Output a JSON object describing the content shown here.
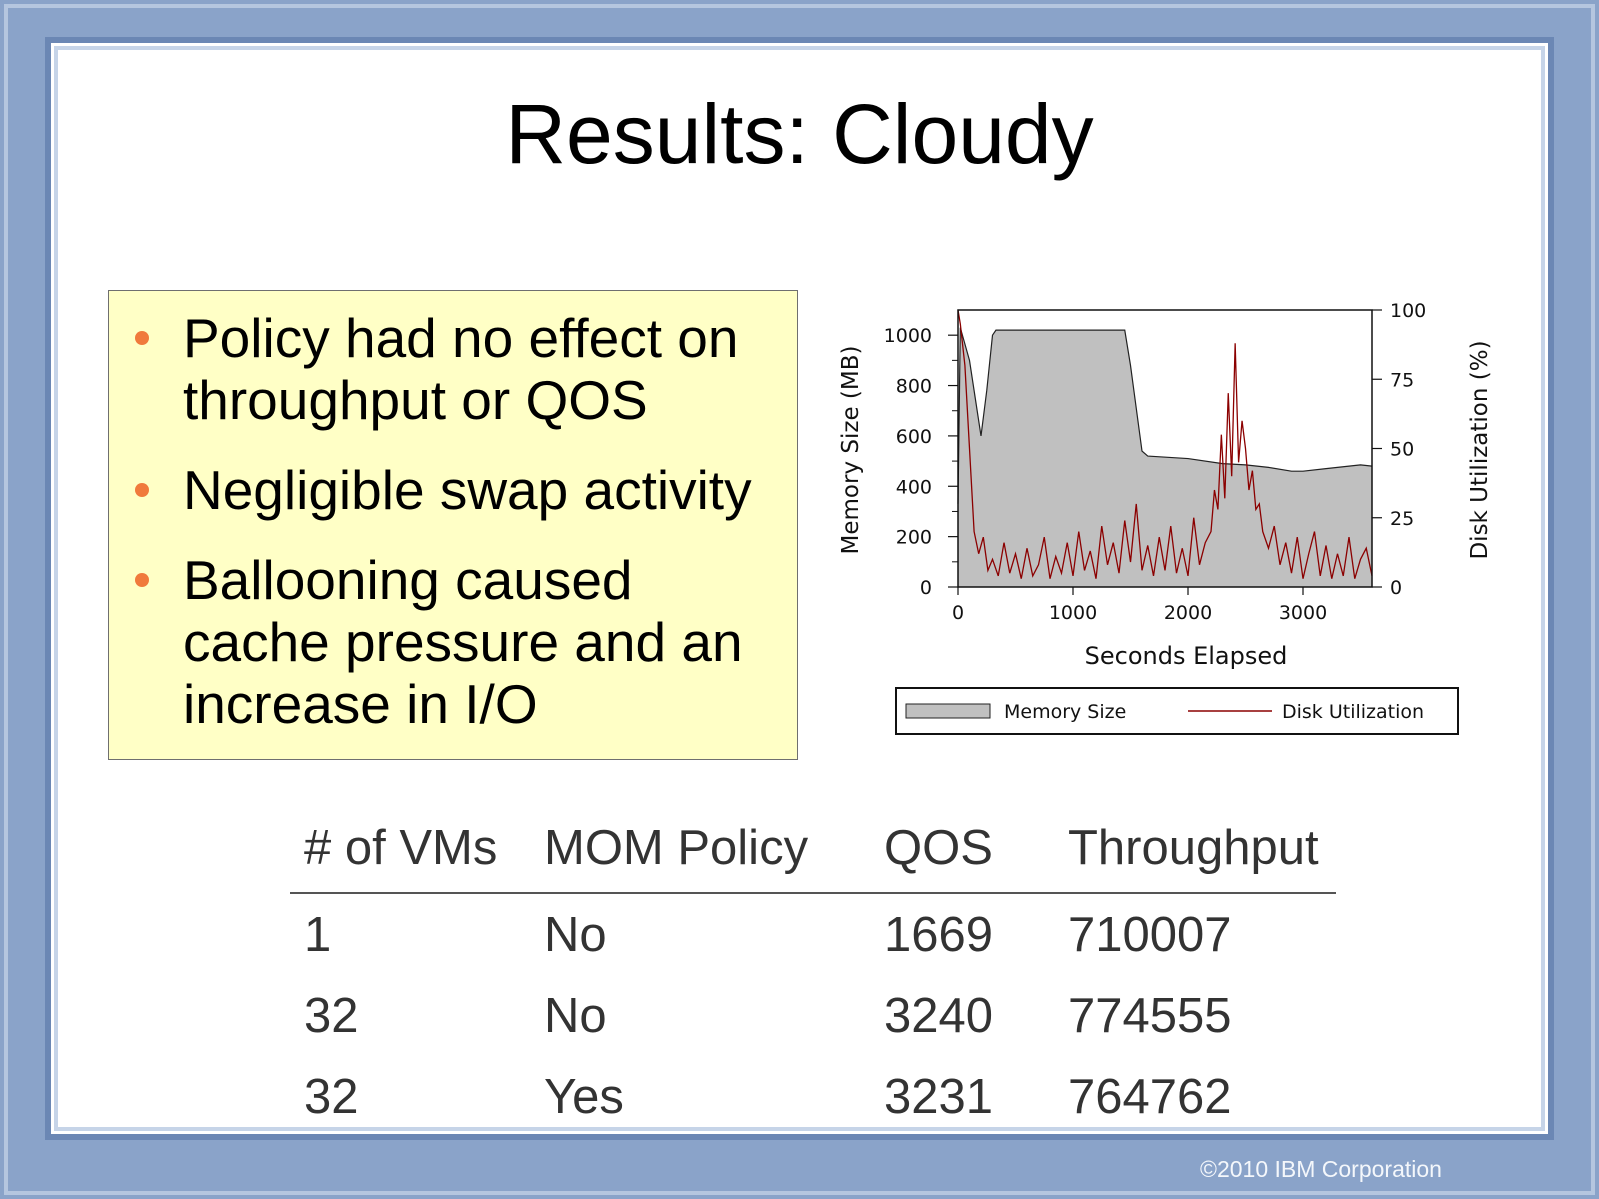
{
  "slide": {
    "title": "Results: Cloudy",
    "bullets": [
      "Policy had no effect on throughput or QOS",
      "Negligible swap activity",
      "Ballooning caused cache pressure and an increase in I/O"
    ],
    "copyright": "©2010 IBM Corporation",
    "colors": {
      "bullet_box": "#ffffc6",
      "bullet_dot": "#f07a3c",
      "frame": "#8aa3c9"
    }
  },
  "chart_data": {
    "type": "area",
    "xlabel": "Seconds Elapsed",
    "ylabel": "Memory Size (MB)",
    "y2label": "Disk Utilization (%)",
    "xlim": [
      0,
      3600
    ],
    "ylim": [
      0,
      1100
    ],
    "y2lim": [
      0,
      100
    ],
    "x_ticks": [
      "0",
      "1000",
      "2000",
      "3000"
    ],
    "y_ticks": [
      "0",
      "200",
      "400",
      "600",
      "800",
      "1000"
    ],
    "y2_ticks": [
      "0",
      "25",
      "50",
      "75",
      "100"
    ],
    "legend": {
      "placement": "bottom",
      "entries": [
        "Memory Size",
        "Disk Utilization"
      ]
    },
    "colors": {
      "memory": "#c0c0c0",
      "memory_line": "#222222",
      "disk": "#8b0000"
    },
    "series": [
      {
        "name": "Memory Size",
        "axis": "left",
        "x": [
          0,
          20,
          100,
          150,
          200,
          250,
          300,
          330,
          1450,
          1500,
          1600,
          1650,
          2000,
          2300,
          2500,
          2700,
          2900,
          3000,
          3200,
          3400,
          3500,
          3600
        ],
        "y": [
          330,
          1030,
          900,
          750,
          600,
          780,
          1000,
          1020,
          1020,
          880,
          540,
          520,
          510,
          490,
          485,
          475,
          460,
          460,
          470,
          480,
          485,
          480
        ]
      },
      {
        "name": "Disk Utilization",
        "axis": "right",
        "x": [
          0,
          20,
          60,
          100,
          140,
          180,
          220,
          260,
          300,
          350,
          400,
          450,
          500,
          550,
          600,
          650,
          700,
          750,
          800,
          850,
          900,
          950,
          1000,
          1050,
          1100,
          1150,
          1200,
          1250,
          1300,
          1350,
          1400,
          1450,
          1500,
          1550,
          1600,
          1650,
          1700,
          1750,
          1800,
          1850,
          1900,
          1950,
          2000,
          2050,
          2100,
          2150,
          2200,
          2230,
          2260,
          2290,
          2320,
          2350,
          2380,
          2410,
          2440,
          2470,
          2500,
          2530,
          2560,
          2590,
          2620,
          2650,
          2700,
          2750,
          2800,
          2850,
          2900,
          2950,
          3000,
          3050,
          3100,
          3150,
          3200,
          3250,
          3300,
          3350,
          3400,
          3450,
          3500,
          3550,
          3600
        ],
        "y": [
          100,
          95,
          80,
          50,
          20,
          12,
          18,
          6,
          10,
          4,
          16,
          5,
          12,
          3,
          14,
          4,
          8,
          18,
          3,
          11,
          5,
          16,
          4,
          20,
          6,
          13,
          3,
          22,
          8,
          16,
          5,
          24,
          9,
          30,
          6,
          15,
          4,
          18,
          6,
          22,
          5,
          14,
          4,
          25,
          8,
          16,
          20,
          35,
          28,
          55,
          32,
          70,
          40,
          88,
          45,
          60,
          50,
          35,
          42,
          28,
          30,
          20,
          14,
          22,
          8,
          16,
          5,
          18,
          3,
          12,
          20,
          4,
          15,
          3,
          12,
          4,
          18,
          3,
          10,
          14,
          4
        ]
      }
    ]
  },
  "table": {
    "headers": [
      "# of VMs",
      "MOM Policy",
      "QOS",
      "Throughput"
    ],
    "rows": [
      [
        "1",
        "No",
        "1669",
        "710007"
      ],
      [
        "32",
        "No",
        "3240",
        "774555"
      ],
      [
        "32",
        "Yes",
        "3231",
        "764762"
      ]
    ]
  }
}
